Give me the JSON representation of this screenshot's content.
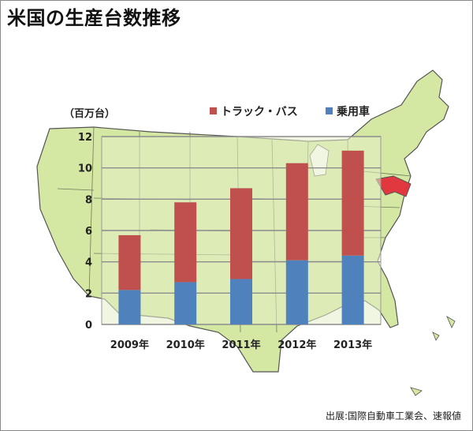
{
  "title": "米国の生産台数推移",
  "source": "出展:国際自動車工業会、速報値",
  "colors": {
    "truck_bus": "#c0504d",
    "passenger": "#4f81bd",
    "map_fill": "#d4e7a3",
    "map_plot_fill": "#e3eec9",
    "highlight_state": "#e0383e"
  },
  "chart_data": {
    "type": "bar",
    "stacked": true,
    "title": "米国の生産台数推移",
    "unit_label": "（百万台）",
    "categories": [
      "2009年",
      "2010年",
      "2011年",
      "2012年",
      "2013年"
    ],
    "series": [
      {
        "name": "乗用車",
        "values": [
          2.2,
          2.7,
          2.9,
          4.1,
          4.4
        ]
      },
      {
        "name": "トラック・バス",
        "values": [
          3.5,
          5.1,
          5.8,
          6.2,
          6.7
        ]
      }
    ],
    "legend_order": [
      "トラック・バス",
      "乗用車"
    ],
    "legend_position": "top",
    "ylim": [
      0,
      12
    ],
    "yticks": [
      "0",
      "2",
      "4",
      "6",
      "8",
      "10",
      "12"
    ],
    "grid": true,
    "background": "map of the United States"
  }
}
